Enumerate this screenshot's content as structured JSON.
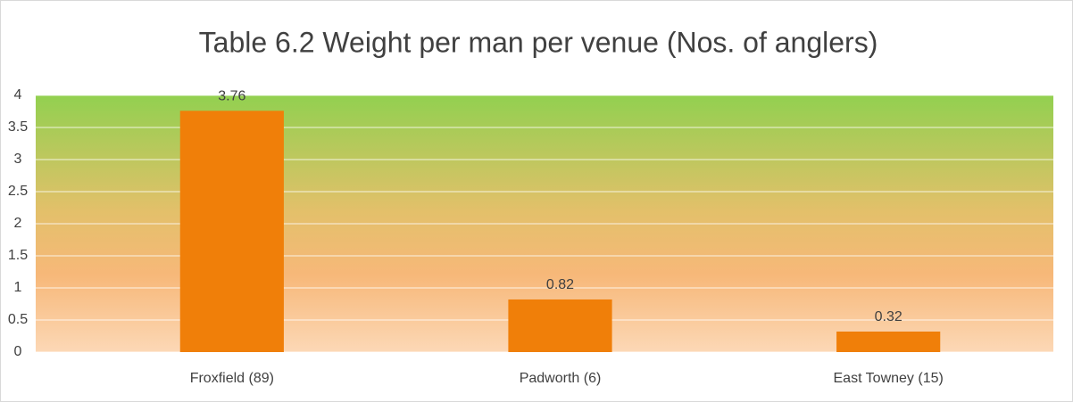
{
  "chart_data": {
    "type": "bar",
    "title": "Table 6.2 Weight per man per venue (Nos. of anglers)",
    "categories": [
      "Froxfield (89)",
      "Padworth (6)",
      "East Towney (15)"
    ],
    "values": [
      3.76,
      0.82,
      0.32
    ],
    "color": "#f07f09",
    "ylim": [
      0,
      4
    ],
    "yticks": [
      0,
      0.5,
      1,
      1.5,
      2,
      2.5,
      3,
      3.5,
      4
    ],
    "grid": true,
    "data_labels": true
  }
}
